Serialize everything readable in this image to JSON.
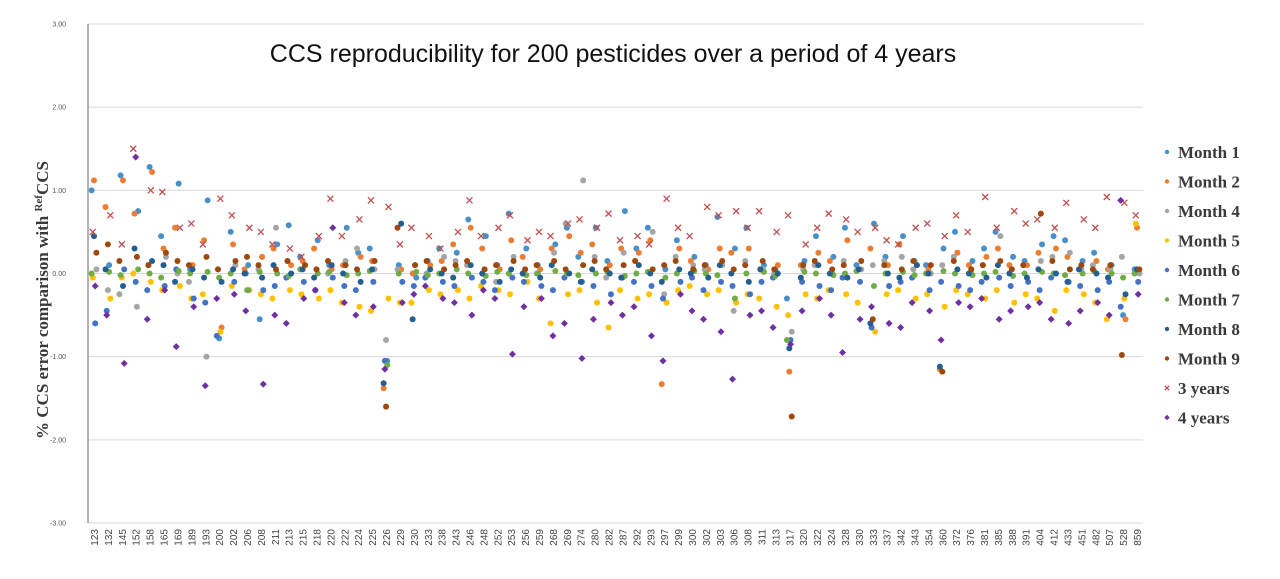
{
  "chart_data": {
    "type": "scatter",
    "title": "CCS reproducibility for 200 pesticides over a period of 4 years",
    "xlabel": "",
    "ylabel": "% CCS error comparison with RefCCS",
    "ylabel_prefix": "% CCS error comparison with ",
    "ylabel_sup": "Ref",
    "ylabel_suffix": "CCS",
    "ylim": [
      -3.0,
      3.0
    ],
    "yticks": [
      "3.00",
      "2.00",
      "1.00",
      "0.00",
      "-1.00",
      "-2.00",
      "-3.00"
    ],
    "ytick_values": [
      3,
      2,
      1,
      0,
      -1,
      -2,
      -3
    ],
    "grid": true,
    "legend_position": "right",
    "categories": [
      "123",
      "132",
      "145",
      "152",
      "158",
      "165",
      "169",
      "189",
      "193",
      "200",
      "202",
      "206",
      "208",
      "211",
      "213",
      "215",
      "218",
      "220",
      "222",
      "224",
      "225",
      "226",
      "229",
      "230",
      "233",
      "238",
      "243",
      "246",
      "248",
      "252",
      "253",
      "256",
      "259",
      "268",
      "269",
      "274",
      "280",
      "282",
      "287",
      "292",
      "293",
      "297",
      "299",
      "300",
      "302",
      "303",
      "306",
      "308",
      "311",
      "313",
      "317",
      "320",
      "322",
      "324",
      "328",
      "330",
      "333",
      "337",
      "342",
      "343",
      "354",
      "360",
      "372",
      "376",
      "381",
      "385",
      "388",
      "391",
      "404",
      "412",
      "433",
      "451",
      "482",
      "507",
      "528",
      "859"
    ],
    "series": [
      {
        "name": "Month 1",
        "color": "#4a90c8",
        "marker": "circle",
        "values": [
          1.0,
          0.1,
          1.18,
          0.75,
          1.28,
          0.45,
          1.08,
          0.05,
          0.88,
          -0.78,
          0.5,
          0.1,
          -0.55,
          0.35,
          0.58,
          0.2,
          0.4,
          0.1,
          0.55,
          0.25,
          0.3,
          -1.05,
          0.1,
          -0.05,
          0.15,
          0.3,
          0.25,
          0.65,
          0.45,
          0.1,
          0.72,
          0.3,
          0.1,
          0.35,
          0.55,
          0.2,
          0.55,
          0.15,
          0.75,
          0.3,
          0.55,
          0.05,
          0.4,
          0.2,
          0.1,
          0.68,
          0.3,
          0.55,
          0.1,
          0.05,
          -0.3,
          0.15,
          0.45,
          0.2,
          0.55,
          0.1,
          0.6,
          0.2,
          0.45,
          0.15,
          0.1,
          0.3,
          0.5,
          0.15,
          0.3,
          0.5,
          0.2,
          0.15,
          0.35,
          0.45,
          0.4,
          0.15,
          0.25,
          0.1,
          -0.5,
          0.05
        ]
      },
      {
        "name": "Month 2",
        "color": "#ed7d31",
        "marker": "circle",
        "values": [
          1.12,
          0.8,
          1.12,
          0.72,
          1.22,
          0.3,
          0.55,
          0.1,
          0.4,
          -0.65,
          0.35,
          0.05,
          0.2,
          0.3,
          0.1,
          0.15,
          0.3,
          0.05,
          0.1,
          0.2,
          0.15,
          -1.38,
          0.05,
          0.0,
          0.1,
          0.15,
          0.35,
          0.55,
          0.3,
          0.05,
          0.4,
          0.2,
          0.05,
          0.3,
          0.45,
          0.25,
          0.35,
          0.1,
          0.3,
          0.25,
          0.4,
          -1.33,
          0.3,
          0.15,
          0.05,
          0.3,
          0.25,
          0.3,
          0.05,
          0.1,
          -1.18,
          0.1,
          0.25,
          0.15,
          0.4,
          0.05,
          0.3,
          0.1,
          0.35,
          0.1,
          0.05,
          -1.15,
          0.25,
          0.1,
          0.2,
          0.3,
          0.1,
          0.1,
          0.25,
          0.3,
          0.2,
          0.05,
          0.15,
          0.05,
          -0.55,
          0.55
        ]
      },
      {
        "name": "Month 4",
        "color": "#a5a5a5",
        "marker": "circle",
        "values": [
          0.05,
          -0.2,
          -0.25,
          -0.4,
          0.1,
          0.2,
          0.0,
          -0.1,
          -1.0,
          0.05,
          0.1,
          -0.2,
          0.05,
          0.55,
          0.15,
          0.1,
          0.05,
          0.0,
          0.15,
          0.3,
          0.05,
          -0.8,
          0.05,
          0.1,
          0.0,
          0.2,
          0.15,
          0.1,
          0.05,
          -0.1,
          0.2,
          0.05,
          0.0,
          0.25,
          0.6,
          1.12,
          0.2,
          -0.05,
          0.25,
          0.15,
          0.5,
          -0.25,
          0.2,
          0.1,
          0.05,
          0.1,
          -0.45,
          0.15,
          0.05,
          0.0,
          -0.7,
          0.05,
          0.1,
          0.0,
          0.15,
          0.05,
          0.1,
          0.15,
          0.2,
          0.05,
          0.0,
          0.1,
          0.2,
          0.0,
          0.1,
          0.45,
          0.05,
          0.1,
          0.15,
          0.2,
          0.25,
          0.05,
          0.1,
          0.05,
          0.2,
          0.0
        ]
      },
      {
        "name": "Month 5",
        "color": "#ffc000",
        "marker": "circle",
        "values": [
          -0.05,
          -0.3,
          -0.05,
          0.0,
          -0.1,
          -0.2,
          -0.15,
          -0.3,
          -0.25,
          -0.7,
          -0.15,
          -0.2,
          -0.25,
          -0.3,
          -0.2,
          -0.25,
          -0.3,
          -0.2,
          -0.35,
          -0.4,
          -0.45,
          -0.3,
          -0.35,
          -0.35,
          -0.2,
          -0.25,
          -0.2,
          -0.3,
          -0.15,
          -0.2,
          -0.25,
          -0.1,
          -0.3,
          -0.6,
          -0.25,
          -0.2,
          -0.35,
          -0.65,
          -0.2,
          -0.3,
          -0.25,
          -0.35,
          -0.2,
          -0.15,
          -0.25,
          -0.2,
          -0.35,
          -0.25,
          -0.3,
          -0.4,
          -0.5,
          -0.25,
          -0.3,
          -0.2,
          -0.25,
          -0.35,
          -0.7,
          -0.25,
          -0.2,
          -0.3,
          -0.25,
          -0.4,
          -0.2,
          -0.25,
          -0.3,
          -0.2,
          -0.35,
          -0.25,
          -0.3,
          -0.45,
          -0.2,
          -0.25,
          -0.35,
          -0.55,
          -0.3,
          0.6
        ]
      },
      {
        "name": "Month 6",
        "color": "#4472c4",
        "marker": "circle",
        "values": [
          -0.6,
          -0.45,
          0.05,
          -0.1,
          -0.2,
          -0.15,
          0.05,
          -0.3,
          -0.35,
          -0.75,
          -0.1,
          0.0,
          -0.2,
          -0.15,
          -0.05,
          -0.1,
          -0.2,
          -0.05,
          -0.15,
          -0.2,
          -0.1,
          -1.05,
          -0.1,
          -0.15,
          -0.05,
          -0.1,
          -0.15,
          -0.05,
          -0.1,
          -0.2,
          -0.05,
          -0.1,
          -0.15,
          -0.2,
          -0.05,
          -0.1,
          -0.15,
          -0.25,
          -0.05,
          -0.1,
          -0.15,
          -0.3,
          -0.1,
          -0.05,
          -0.2,
          -0.1,
          -0.15,
          -0.25,
          -0.1,
          -0.05,
          -0.8,
          -0.1,
          -0.15,
          -0.2,
          -0.05,
          -0.1,
          -0.65,
          -0.15,
          -0.1,
          -0.05,
          -0.2,
          -0.1,
          -0.15,
          -0.2,
          -0.1,
          -0.05,
          -0.15,
          -0.1,
          -0.2,
          -0.05,
          -0.1,
          -0.15,
          -0.2,
          -0.1,
          -0.4,
          -0.1
        ]
      },
      {
        "name": "Month 7",
        "color": "#70ad47",
        "marker": "circle",
        "values": [
          0.0,
          0.02,
          -0.02,
          0.05,
          0.0,
          -0.05,
          0.03,
          0.0,
          0.02,
          -0.05,
          0.0,
          -0.2,
          0.02,
          0.0,
          -0.03,
          0.05,
          0.0,
          0.02,
          -0.02,
          0.0,
          0.03,
          -1.1,
          0.0,
          0.02,
          -0.02,
          0.0,
          0.05,
          0.0,
          -0.03,
          0.02,
          0.0,
          -0.02,
          0.0,
          0.03,
          0.0,
          -0.02,
          0.0,
          0.02,
          -0.03,
          0.0,
          0.02,
          -0.05,
          0.0,
          0.03,
          0.0,
          -0.02,
          -0.3,
          0.0,
          0.02,
          -0.03,
          -0.8,
          0.02,
          0.0,
          -0.02,
          0.0,
          0.03,
          -0.15,
          0.0,
          0.02,
          -0.02,
          0.0,
          0.03,
          0.0,
          -0.02,
          0.0,
          0.02,
          -0.03,
          0.0,
          0.02,
          0.0,
          -0.02,
          0.0,
          0.03,
          0.0,
          -0.05,
          0.0
        ]
      },
      {
        "name": "Month 8",
        "color": "#255e91",
        "marker": "circle",
        "values": [
          0.45,
          0.05,
          -0.15,
          0.3,
          0.15,
          0.1,
          -0.1,
          0.05,
          -0.05,
          -0.1,
          0.05,
          0.0,
          -0.05,
          0.1,
          0.0,
          0.05,
          -0.05,
          0.1,
          0.0,
          -0.1,
          0.05,
          -1.32,
          0.6,
          -0.55,
          0.05,
          0.0,
          -0.05,
          0.1,
          0.0,
          -0.1,
          0.05,
          0.0,
          -0.05,
          0.1,
          0.0,
          -0.1,
          0.05,
          0.0,
          -0.05,
          0.1,
          0.0,
          -0.1,
          0.05,
          0.0,
          -0.05,
          0.1,
          0.0,
          -0.1,
          0.05,
          0.0,
          -0.9,
          -0.05,
          0.1,
          0.0,
          -0.05,
          0.05,
          -0.6,
          0.0,
          -0.05,
          0.1,
          0.0,
          -1.12,
          0.05,
          0.0,
          -0.05,
          0.1,
          0.0,
          -0.05,
          0.05,
          0.0,
          -0.1,
          0.05,
          0.0,
          -0.05,
          -0.25,
          0.05
        ]
      },
      {
        "name": "Month 9",
        "color": "#9e480e",
        "marker": "circle",
        "values": [
          0.25,
          0.35,
          0.15,
          0.2,
          0.1,
          0.25,
          0.15,
          0.1,
          0.2,
          0.05,
          0.15,
          0.2,
          0.1,
          0.05,
          0.15,
          0.1,
          0.05,
          0.15,
          0.1,
          0.05,
          0.15,
          -1.6,
          0.55,
          0.1,
          0.15,
          0.05,
          0.1,
          0.15,
          0.05,
          0.1,
          0.15,
          0.05,
          0.1,
          0.15,
          0.05,
          0.1,
          0.15,
          0.05,
          0.1,
          0.15,
          0.05,
          0.1,
          0.15,
          0.05,
          0.1,
          0.15,
          0.05,
          0.1,
          0.15,
          0.05,
          -1.72,
          0.1,
          0.15,
          0.05,
          0.1,
          0.15,
          -0.55,
          0.1,
          0.05,
          0.15,
          0.1,
          -1.18,
          0.15,
          0.05,
          0.1,
          0.15,
          0.05,
          0.1,
          0.72,
          0.15,
          0.05,
          0.1,
          0.05,
          0.1,
          -0.98,
          0.05
        ]
      },
      {
        "name": "3 years",
        "color": "#c0504d",
        "marker": "x",
        "values": [
          0.5,
          0.7,
          0.35,
          1.5,
          1.0,
          0.98,
          0.55,
          0.6,
          0.35,
          0.9,
          0.7,
          0.55,
          0.5,
          0.35,
          0.3,
          0.2,
          0.45,
          0.9,
          0.45,
          0.65,
          0.88,
          0.8,
          0.35,
          0.55,
          0.45,
          0.3,
          0.5,
          0.88,
          0.45,
          0.55,
          0.7,
          0.4,
          0.5,
          0.45,
          0.6,
          0.65,
          0.55,
          0.72,
          0.4,
          0.45,
          0.35,
          0.9,
          0.55,
          0.45,
          0.8,
          0.7,
          0.75,
          0.55,
          0.75,
          0.5,
          0.7,
          0.35,
          0.55,
          0.72,
          0.65,
          0.5,
          0.55,
          0.4,
          0.35,
          0.55,
          0.6,
          0.45,
          0.7,
          0.5,
          0.92,
          0.55,
          0.75,
          0.6,
          0.65,
          0.55,
          0.85,
          0.65,
          0.55,
          0.92,
          0.85,
          0.7
        ]
      },
      {
        "name": "4 years",
        "color": "#7030a0",
        "marker": "diamond",
        "values": [
          -0.15,
          -0.5,
          -1.08,
          1.4,
          -0.55,
          -0.2,
          -0.88,
          -0.4,
          -1.35,
          -0.3,
          -0.25,
          -0.45,
          -1.33,
          -0.5,
          -0.6,
          -0.3,
          -0.2,
          0.55,
          -0.35,
          -0.5,
          -0.4,
          -1.15,
          -0.35,
          -0.25,
          -0.15,
          -0.3,
          -0.35,
          -0.5,
          -0.2,
          -0.3,
          -0.97,
          -0.4,
          -0.3,
          -0.75,
          -0.6,
          -1.02,
          -0.55,
          -0.35,
          -0.5,
          -0.4,
          -0.75,
          -1.05,
          -0.25,
          -0.45,
          -0.55,
          -0.7,
          -1.27,
          -0.5,
          -0.45,
          -0.65,
          -0.85,
          -0.45,
          -0.3,
          -0.5,
          -0.95,
          -0.55,
          -0.4,
          -0.6,
          -0.65,
          -0.35,
          -0.45,
          -0.8,
          -0.35,
          -0.4,
          -0.3,
          -0.55,
          -0.45,
          -0.4,
          -0.35,
          -0.55,
          -0.6,
          -0.45,
          -0.35,
          -0.5,
          0.88,
          -0.25
        ]
      }
    ]
  }
}
